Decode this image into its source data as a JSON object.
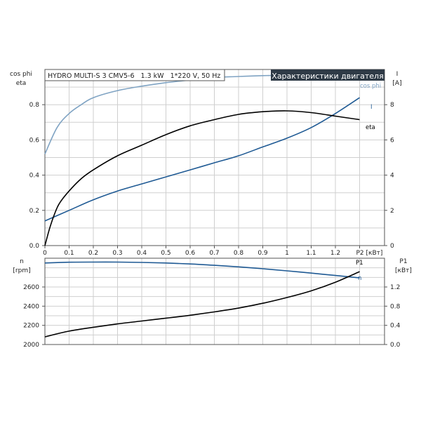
{
  "chart_data": [
    {
      "type": "line",
      "title": "Характеристики двигателя",
      "subtitle": "HYDRO MULTI-S 3 CMV5-6   1.3 kW   1*220 V, 50 Hz",
      "xlabel": "P2 [кВт]",
      "ylabel_left": [
        "cos phi",
        "eta"
      ],
      "ylabel_right": [
        "I",
        "[A]"
      ],
      "xlim": [
        0,
        2.2
      ],
      "ylim_left": [
        0,
        1
      ],
      "ylim_right": [
        0,
        10
      ],
      "x_ticks": [
        "0",
        "0.1",
        "0.2",
        "0.3",
        "0.4",
        "0.5",
        "0.6",
        "0.7",
        "0.8",
        "0.9",
        "1",
        "1.1",
        "1.2",
        "P2 [кВт]"
      ],
      "y_left_ticks": [
        "0.0",
        "0.2",
        "0.4",
        "0.6",
        "0.8"
      ],
      "y_right_ticks": [
        "0",
        "2",
        "4",
        "6",
        "8"
      ],
      "grid": true,
      "series": [
        {
          "name": "cos phi",
          "axis": "left",
          "color": "#7fa3c3",
          "x": [
            0,
            0.05,
            0.1,
            0.15,
            0.2,
            0.3,
            0.4,
            0.5,
            0.6,
            0.7,
            0.8,
            0.9,
            1.0,
            1.1,
            1.2,
            1.3
          ],
          "values": [
            0.52,
            0.67,
            0.75,
            0.8,
            0.84,
            0.88,
            0.905,
            0.925,
            0.94,
            0.955,
            0.96,
            0.965,
            0.968,
            0.97,
            0.97,
            0.97
          ]
        },
        {
          "name": "I",
          "axis": "right",
          "color": "#1f5a94",
          "x": [
            0,
            0.1,
            0.2,
            0.3,
            0.4,
            0.5,
            0.6,
            0.7,
            0.8,
            0.9,
            1.0,
            1.1,
            1.2,
            1.3
          ],
          "values": [
            1.4,
            2.0,
            2.6,
            3.1,
            3.5,
            3.9,
            4.3,
            4.7,
            5.1,
            5.6,
            6.1,
            6.7,
            7.5,
            8.4
          ]
        },
        {
          "name": "eta",
          "axis": "left",
          "color": "#000000",
          "x": [
            0,
            0.02,
            0.04,
            0.06,
            0.1,
            0.15,
            0.2,
            0.3,
            0.4,
            0.5,
            0.6,
            0.7,
            0.8,
            0.9,
            1.0,
            1.1,
            1.2,
            1.3
          ],
          "values": [
            0,
            0.1,
            0.18,
            0.24,
            0.31,
            0.38,
            0.43,
            0.51,
            0.57,
            0.63,
            0.68,
            0.715,
            0.745,
            0.76,
            0.765,
            0.755,
            0.735,
            0.715
          ]
        }
      ]
    },
    {
      "type": "line",
      "xlim": [
        0,
        2.2
      ],
      "ylabel_left": [
        "n",
        "[rpm]"
      ],
      "ylabel_right": [
        "P1",
        "[кВт]"
      ],
      "ylim_left": [
        2000,
        2900
      ],
      "ylim_right": [
        0,
        1.8
      ],
      "y_left_ticks": [
        "2000",
        "2200",
        "2400",
        "2600"
      ],
      "y_right_ticks": [
        "0.0",
        "0.4",
        "0.8",
        "1.2"
      ],
      "grid": true,
      "series": [
        {
          "name": "n",
          "axis": "left",
          "color": "#1f5a94",
          "x": [
            0,
            0.1,
            0.2,
            0.3,
            0.4,
            0.5,
            0.6,
            0.7,
            0.8,
            0.9,
            1.0,
            1.1,
            1.2,
            1.3
          ],
          "values": [
            2850,
            2858,
            2860,
            2860,
            2856,
            2850,
            2840,
            2826,
            2810,
            2790,
            2768,
            2745,
            2720,
            2695
          ]
        },
        {
          "name": "P1",
          "axis": "right",
          "color": "#000000",
          "x": [
            0,
            0.1,
            0.2,
            0.3,
            0.4,
            0.5,
            0.6,
            0.7,
            0.8,
            0.9,
            1.0,
            1.1,
            1.2,
            1.3
          ],
          "values": [
            0.16,
            0.28,
            0.36,
            0.43,
            0.49,
            0.55,
            0.61,
            0.68,
            0.76,
            0.86,
            0.98,
            1.12,
            1.3,
            1.52
          ]
        }
      ]
    }
  ]
}
